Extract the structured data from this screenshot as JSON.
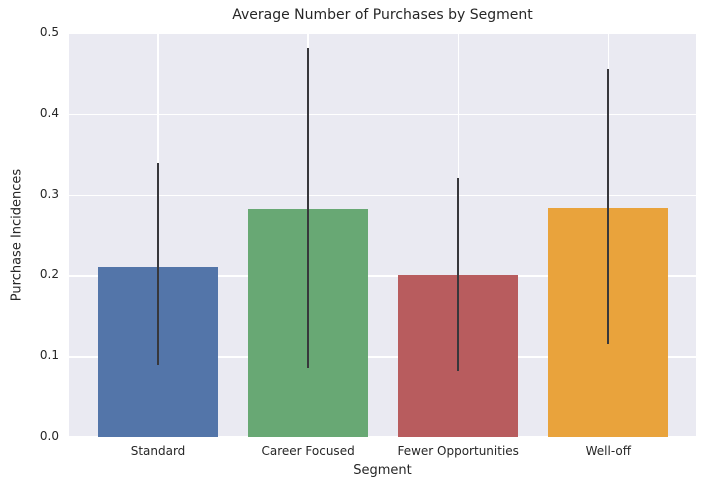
{
  "figure": {
    "background": "#ffffff",
    "axes_background": "#eaeaf2",
    "grid_color": "#ffffff",
    "text_color": "#262626",
    "errorbar_color": "#37373b"
  },
  "chart_data": {
    "type": "bar",
    "title": "Average Number of Purchases by Segment",
    "xlabel": "Segment",
    "ylabel": "Purchase Incidences",
    "categories": [
      "Standard",
      "Career Focused",
      "Fewer Opportunities",
      "Well-off"
    ],
    "values": [
      0.21,
      0.282,
      0.2,
      0.284
    ],
    "error_low": [
      0.089,
      0.085,
      0.082,
      0.115
    ],
    "error_high": [
      0.339,
      0.482,
      0.321,
      0.455
    ],
    "bar_colors": [
      "#5375a9",
      "#68a874",
      "#b85c5e",
      "#e9a33c"
    ],
    "yticks": [
      0.0,
      0.1,
      0.2,
      0.3,
      0.4,
      0.5
    ],
    "ytick_labels": [
      "0.0",
      "0.1",
      "0.2",
      "0.3",
      "0.4",
      "0.5"
    ],
    "ylim": [
      0,
      0.5
    ],
    "grid": true,
    "legend": false
  }
}
